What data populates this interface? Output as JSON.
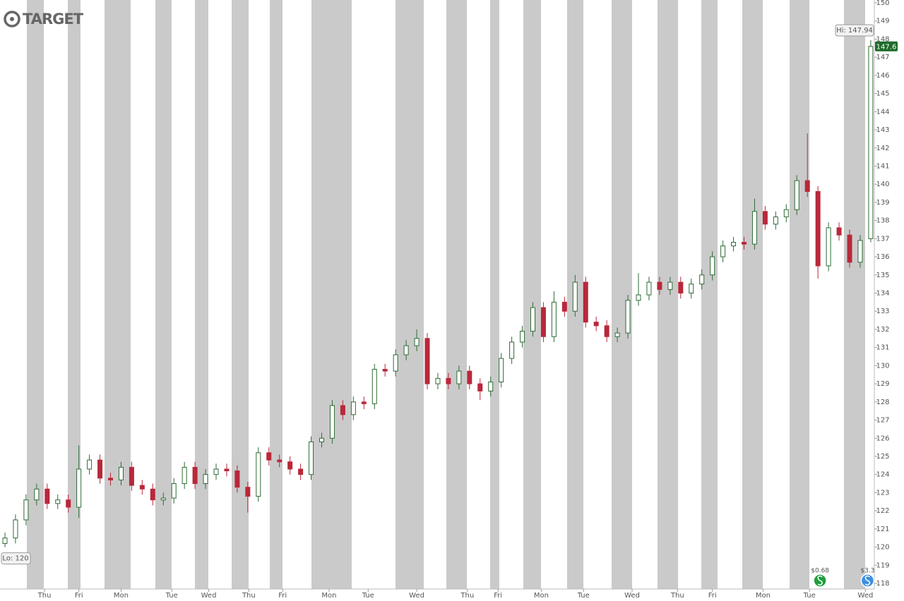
{
  "chart_data": {
    "type": "candlestick",
    "brand": "TARGET",
    "up_color": "#2e6b34",
    "down_color": "#b8283a",
    "ylim": [
      118,
      150
    ],
    "yticks": [
      118,
      119,
      120,
      121,
      122,
      123,
      124,
      125,
      126,
      127,
      128,
      129,
      130,
      131,
      132,
      133,
      134,
      135,
      136,
      137,
      138,
      139,
      140,
      141,
      142,
      143,
      144,
      145,
      146,
      147,
      148,
      149,
      150
    ],
    "xticks": [
      {
        "value": 3.75,
        "label": "Thu"
      },
      {
        "value": 7,
        "label": "Fri"
      },
      {
        "value": 11,
        "label": "Mon"
      },
      {
        "value": 15.8,
        "label": "Tue"
      },
      {
        "value": 19.3,
        "label": "Wed"
      },
      {
        "value": 23.1,
        "label": "Thu"
      },
      {
        "value": 26.3,
        "label": "Fri"
      },
      {
        "value": 30.7,
        "label": "Mon"
      },
      {
        "value": 34.4,
        "label": "Tue"
      },
      {
        "value": 39,
        "label": "Wed"
      },
      {
        "value": 43.8,
        "label": "Thu"
      },
      {
        "value": 46.7,
        "label": "Fri"
      },
      {
        "value": 50.8,
        "label": "Mon"
      },
      {
        "value": 54.8,
        "label": "Tue"
      },
      {
        "value": 59.4,
        "label": "Wed"
      },
      {
        "value": 63.7,
        "label": "Thu"
      },
      {
        "value": 67,
        "label": "Fri"
      },
      {
        "value": 71.8,
        "label": "Mon"
      },
      {
        "value": 76.2,
        "label": "Tue"
      },
      {
        "value": 81.5,
        "label": "Wed"
      }
    ],
    "open": [
      120.2,
      120.5,
      121.5,
      122.6,
      123.2,
      122.4,
      122.6,
      122.2,
      124.3,
      124.8,
      123.8,
      123.7,
      124.4,
      123.4,
      123.2,
      122.6,
      122.7,
      123.5,
      124.4,
      123.5,
      124.0,
      124.3,
      124.2,
      123.3,
      122.8,
      125.2,
      124.8,
      124.7,
      124.3,
      124.0,
      125.8,
      126.0,
      127.8,
      127.3,
      128.0,
      127.9,
      129.8,
      129.7,
      130.6,
      131.1,
      131.5,
      129.0,
      129.3,
      129.0,
      129.7,
      129.0,
      128.6,
      129.1,
      130.4,
      131.3,
      131.9,
      133.2,
      131.6,
      133.5,
      133.0,
      134.6,
      132.4,
      132.2,
      131.6,
      131.8,
      133.6,
      133.9,
      134.6,
      134.2,
      134.6,
      134.0,
      134.5,
      135.0,
      136.0,
      136.6,
      136.8,
      136.7,
      138.5,
      137.8,
      138.2,
      138.6,
      140.2,
      139.6,
      135.5,
      137.6,
      137.2,
      135.7,
      137.0
    ],
    "high": [
      120.8,
      121.8,
      122.9,
      123.5,
      123.5,
      122.9,
      122.9,
      125.6,
      125.1,
      125.1,
      124.1,
      124.7,
      124.7,
      123.7,
      123.5,
      123.0,
      123.8,
      124.7,
      124.7,
      124.3,
      124.6,
      124.6,
      124.5,
      123.6,
      125.5,
      125.5,
      125.1,
      125.0,
      124.6,
      126.1,
      126.3,
      128.1,
      128.1,
      128.3,
      128.3,
      130.1,
      130.1,
      130.9,
      131.4,
      132.0,
      131.8,
      129.6,
      129.6,
      130.0,
      130.0,
      129.3,
      129.4,
      130.7,
      131.6,
      132.2,
      133.5,
      133.5,
      134.1,
      133.8,
      135.0,
      134.9,
      132.7,
      132.5,
      132.1,
      133.9,
      135.1,
      134.9,
      134.9,
      134.9,
      134.9,
      134.8,
      135.3,
      136.3,
      136.9,
      137.1,
      137.1,
      139.2,
      138.8,
      138.5,
      138.9,
      140.5,
      142.8,
      139.9,
      137.9,
      137.9,
      137.5,
      137.2,
      147.94
    ],
    "low": [
      120.0,
      120.2,
      121.2,
      122.3,
      122.1,
      122.1,
      121.9,
      121.6,
      124.0,
      123.5,
      123.4,
      123.4,
      123.1,
      122.9,
      122.3,
      122.3,
      122.4,
      123.2,
      123.2,
      123.2,
      123.7,
      123.9,
      123.0,
      121.9,
      122.5,
      124.5,
      124.4,
      124.0,
      123.7,
      123.7,
      125.5,
      125.7,
      127.0,
      127.0,
      127.6,
      127.6,
      129.4,
      129.4,
      130.3,
      130.8,
      128.7,
      128.7,
      128.7,
      128.7,
      128.7,
      128.1,
      128.3,
      128.8,
      130.1,
      131.0,
      131.6,
      131.3,
      131.3,
      132.7,
      132.7,
      132.1,
      131.9,
      131.3,
      131.3,
      131.5,
      133.3,
      133.6,
      133.9,
      133.9,
      133.7,
      133.7,
      134.2,
      134.7,
      135.7,
      136.3,
      136.4,
      136.4,
      137.5,
      137.5,
      137.9,
      138.3,
      139.3,
      134.8,
      135.2,
      136.9,
      135.4,
      135.4,
      136.8
    ],
    "close": [
      120.5,
      121.5,
      122.6,
      123.2,
      122.4,
      122.6,
      122.2,
      124.3,
      124.8,
      123.8,
      123.7,
      124.4,
      123.4,
      123.2,
      122.6,
      122.7,
      123.5,
      124.4,
      123.5,
      124.0,
      124.3,
      124.2,
      123.3,
      122.8,
      125.2,
      124.8,
      124.7,
      124.3,
      124.0,
      125.8,
      126.0,
      127.8,
      127.3,
      128.0,
      127.9,
      129.8,
      129.7,
      130.6,
      131.1,
      131.5,
      129.0,
      129.3,
      129.0,
      129.7,
      129.0,
      128.6,
      129.1,
      130.4,
      131.3,
      131.9,
      133.2,
      131.6,
      133.5,
      133.0,
      134.6,
      132.4,
      132.2,
      131.6,
      131.8,
      133.6,
      133.9,
      134.6,
      134.2,
      134.6,
      134.0,
      134.5,
      135.0,
      136.0,
      136.6,
      136.8,
      136.7,
      138.5,
      137.8,
      138.2,
      138.6,
      140.2,
      139.6,
      135.5,
      137.6,
      137.2,
      135.7,
      136.9,
      147.6
    ],
    "hi_label": "Hi: 147.94",
    "lo_label": "Lo: 120",
    "events": [
      {
        "x": 77.2,
        "label": "$0.68",
        "color": "#1e9e3e"
      },
      {
        "x": 81.7,
        "label": "$3.3",
        "color": "#3d8fe0"
      }
    ]
  }
}
